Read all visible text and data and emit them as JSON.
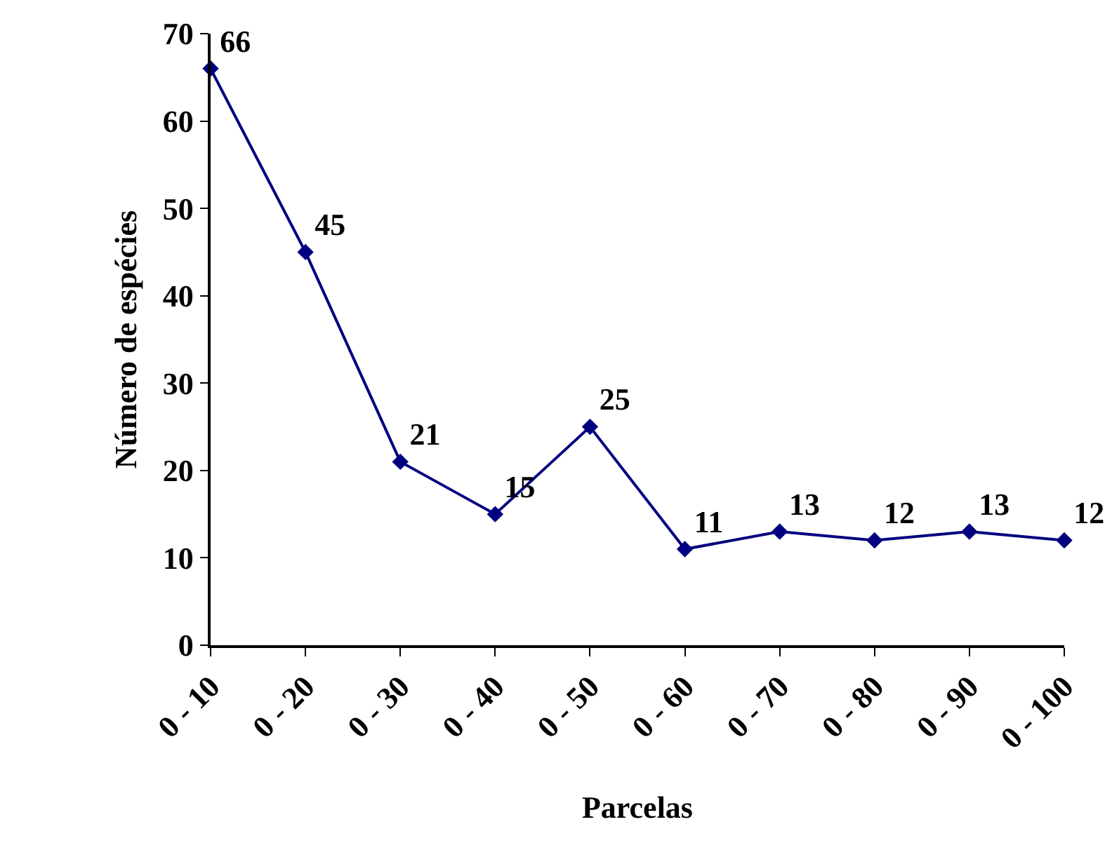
{
  "chart_data": {
    "type": "line",
    "xlabel": "Parcelas",
    "ylabel": "Número de espécies",
    "categories": [
      "0 - 10",
      "0 - 20",
      "0 - 30",
      "0 - 40",
      "0 - 50",
      "0 - 60",
      "0 - 70",
      "0 - 80",
      "0 - 90",
      "0 - 100"
    ],
    "series": [
      {
        "color": "#000080",
        "values": [
          66,
          45,
          21,
          15,
          25,
          11,
          13,
          12,
          13,
          12
        ]
      }
    ],
    "ylim": [
      0,
      70
    ],
    "yticks": [
      0,
      10,
      20,
      30,
      40,
      50,
      60,
      70
    ],
    "marker": "diamond",
    "line_style": "solid",
    "data_labels": true
  }
}
